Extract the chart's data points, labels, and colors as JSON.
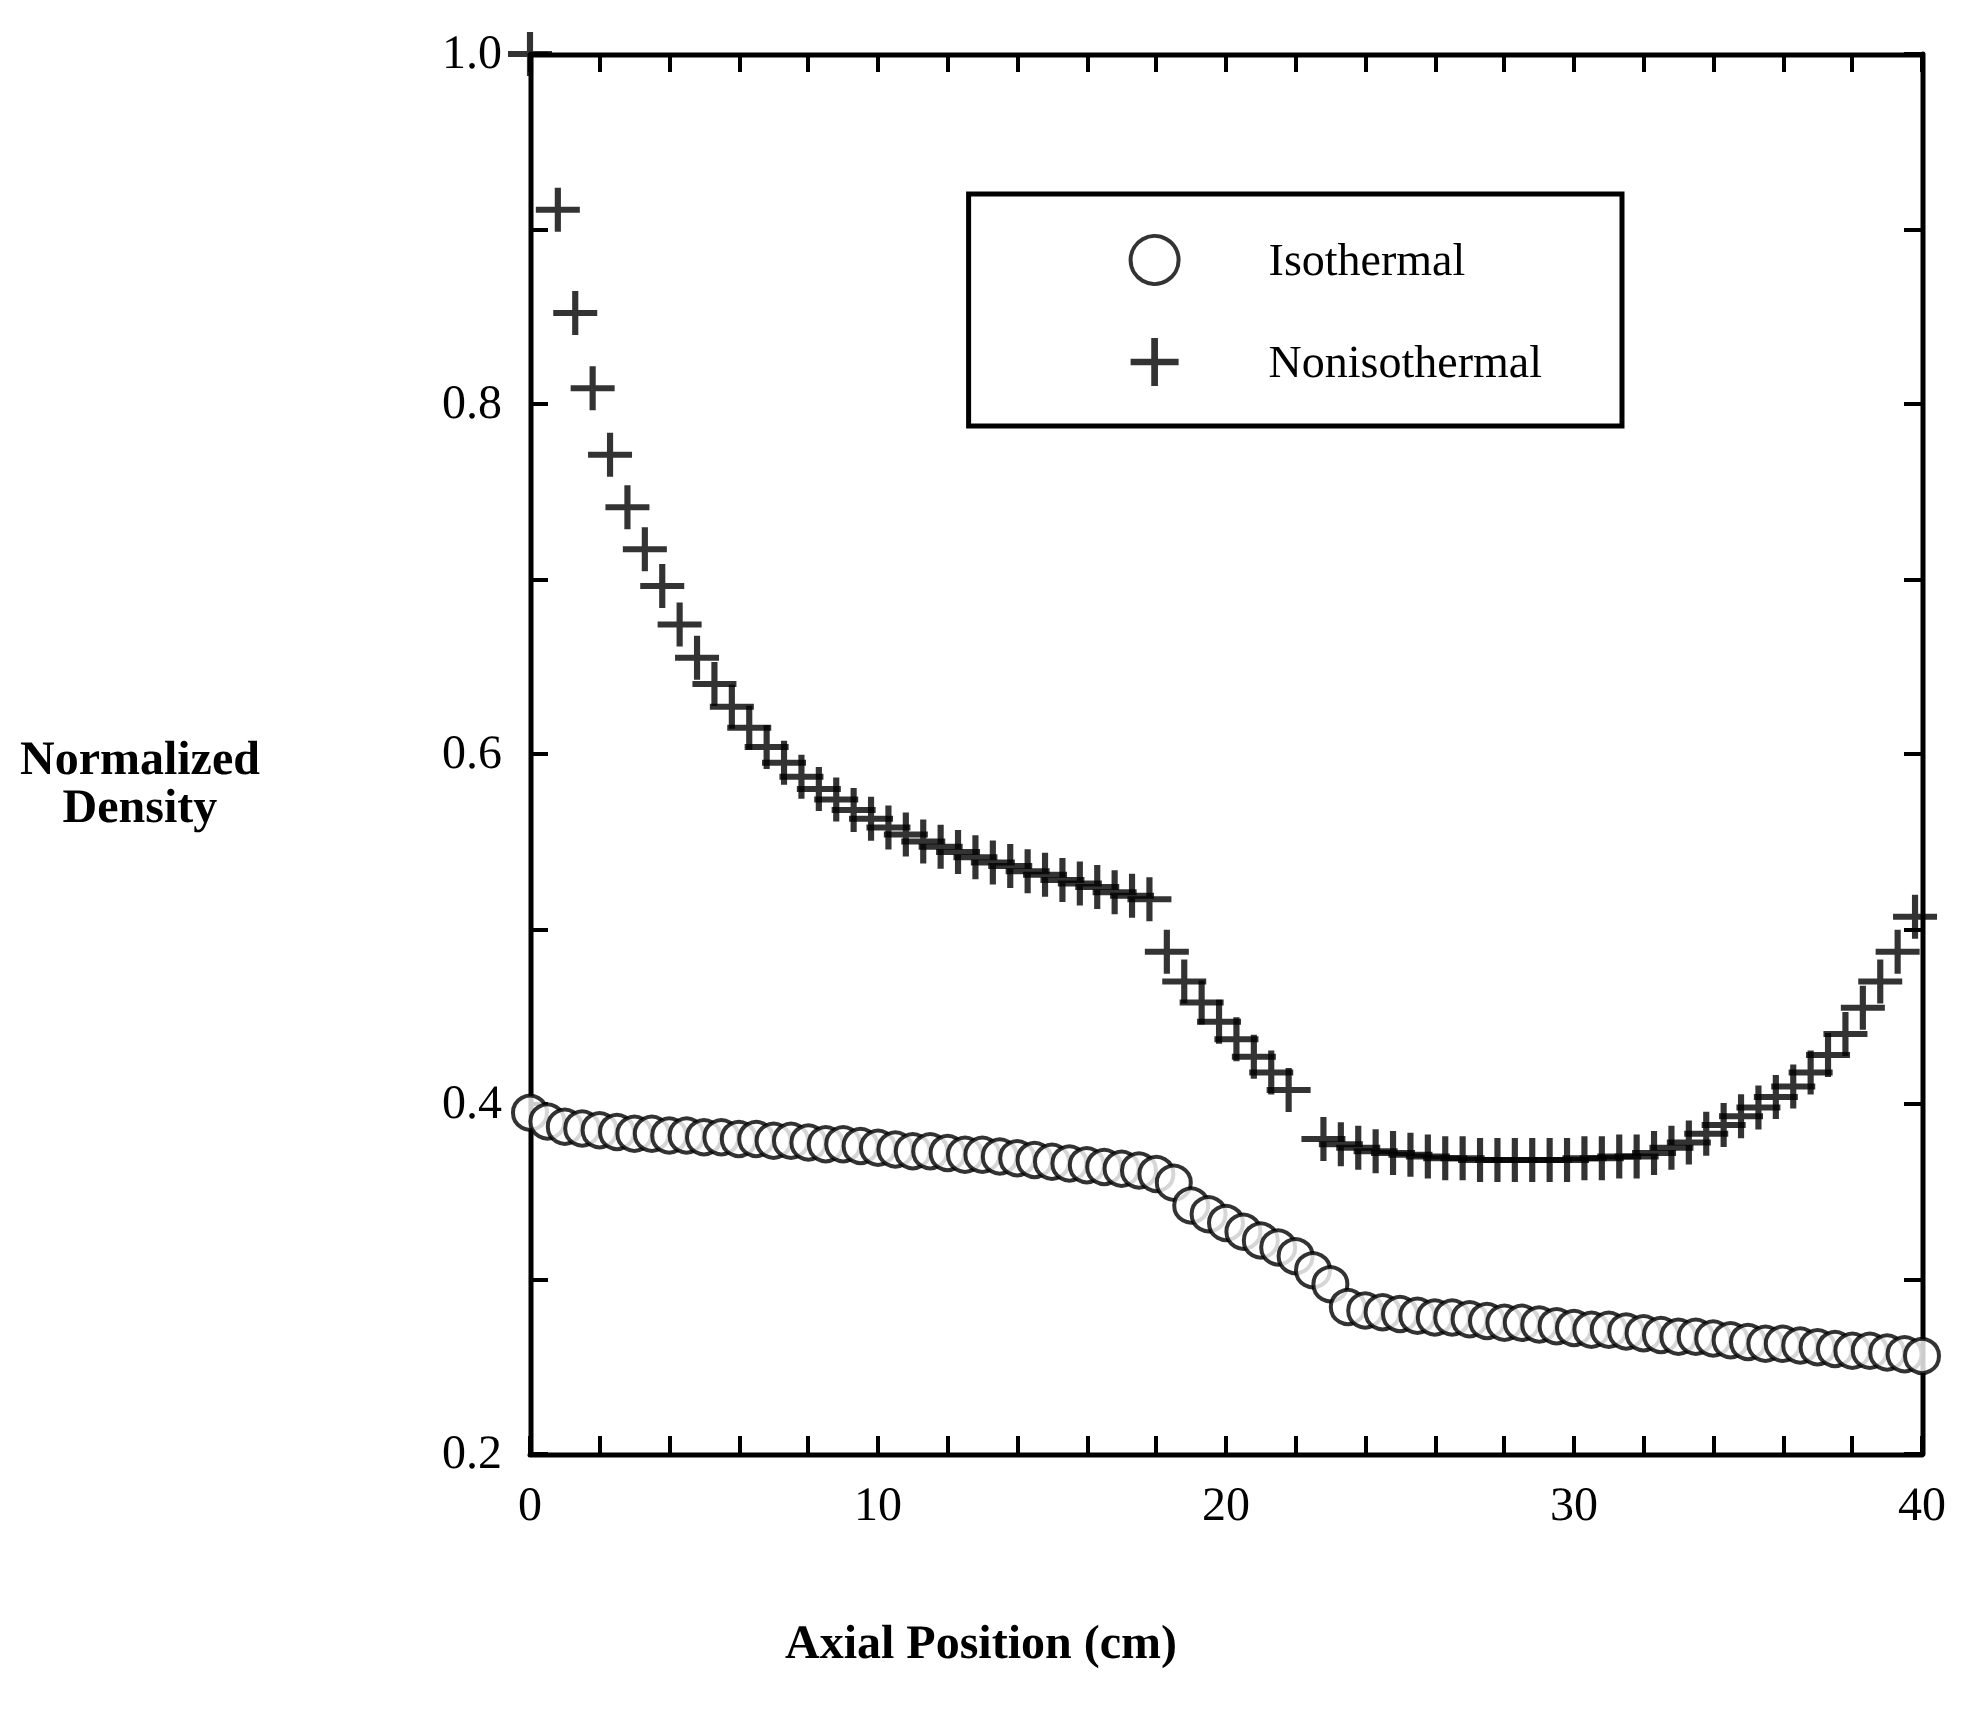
{
  "chart_data": {
    "type": "scatter",
    "xlabel": "Axial Position (cm)",
    "ylabel": "Normalized\nDensity",
    "xlim": [
      0,
      40
    ],
    "ylim": [
      0.2,
      1.0
    ],
    "xticks": [
      0,
      {
        "value": 2,
        "label": null
      },
      {
        "value": 4,
        "label": null
      },
      {
        "value": 6,
        "label": null
      },
      {
        "value": 8,
        "label": null
      },
      10,
      {
        "value": 12,
        "label": null
      },
      {
        "value": 14,
        "label": null
      },
      {
        "value": 16,
        "label": null
      },
      {
        "value": 18,
        "label": null
      },
      20,
      {
        "value": 22,
        "label": null
      },
      {
        "value": 24,
        "label": null
      },
      {
        "value": 26,
        "label": null
      },
      {
        "value": 28,
        "label": null
      },
      30,
      {
        "value": 32,
        "label": null
      },
      {
        "value": 34,
        "label": null
      },
      {
        "value": 36,
        "label": null
      },
      {
        "value": 38,
        "label": null
      },
      40
    ],
    "yticks": [
      {
        "value": 0.2,
        "label": "0.2"
      },
      {
        "value": 0.3,
        "label": null
      },
      {
        "value": 0.4,
        "label": "0.4"
      },
      {
        "value": 0.5,
        "label": null
      },
      {
        "value": 0.6,
        "label": "0.6"
      },
      {
        "value": 0.7,
        "label": null
      },
      {
        "value": 0.8,
        "label": "0.8"
      },
      {
        "value": 0.9,
        "label": null
      },
      {
        "value": 1.0,
        "label": "1.0"
      }
    ],
    "grid": false,
    "legend": "top right",
    "series": [
      {
        "name": "Isothermal",
        "color": "#000000",
        "marker": "circle",
        "x": [
          0,
          0.5,
          1,
          1.5,
          2,
          2.5,
          3,
          3.5,
          4,
          4.5,
          5,
          5.5,
          6,
          6.5,
          7,
          7.5,
          8,
          8.5,
          9,
          9.5,
          10,
          10.5,
          11,
          11.5,
          12,
          12.5,
          13,
          13.5,
          14,
          14.5,
          15,
          15.5,
          16,
          16.5,
          17,
          17.5,
          18,
          18.5,
          19,
          19.5,
          20,
          20.5,
          21,
          21.5,
          22,
          22.5,
          23,
          23.5,
          24,
          24.5,
          25,
          25.5,
          26,
          26.5,
          27,
          27.5,
          28,
          28.5,
          29,
          29.5,
          30,
          30.5,
          31,
          31.5,
          32,
          32.5,
          33,
          33.5,
          34,
          34.5,
          35,
          35.5,
          36,
          36.5,
          37,
          37.5,
          38,
          38.5,
          39,
          39.5,
          40
        ],
        "values": [
          0.395,
          0.39,
          0.387,
          0.386,
          0.385,
          0.384,
          0.383,
          0.383,
          0.382,
          0.382,
          0.381,
          0.381,
          0.38,
          0.38,
          0.379,
          0.379,
          0.378,
          0.377,
          0.377,
          0.376,
          0.375,
          0.374,
          0.373,
          0.373,
          0.372,
          0.371,
          0.371,
          0.37,
          0.369,
          0.368,
          0.367,
          0.366,
          0.365,
          0.364,
          0.363,
          0.362,
          0.36,
          0.355,
          0.342,
          0.337,
          0.332,
          0.327,
          0.322,
          0.318,
          0.313,
          0.305,
          0.297,
          0.284,
          0.282,
          0.281,
          0.28,
          0.279,
          0.278,
          0.278,
          0.277,
          0.276,
          0.275,
          0.275,
          0.274,
          0.273,
          0.272,
          0.271,
          0.271,
          0.27,
          0.269,
          0.268,
          0.267,
          0.267,
          0.266,
          0.265,
          0.264,
          0.263,
          0.263,
          0.262,
          0.261,
          0.26,
          0.259,
          0.259,
          0.258,
          0.257,
          0.256
        ]
      },
      {
        "name": "Nonisothermal",
        "color": "#000000",
        "marker": "cross",
        "x": [
          0,
          0.8,
          1.3,
          1.8,
          2.3,
          2.8,
          3.3,
          3.8,
          4.3,
          4.8,
          5.3,
          5.8,
          6.3,
          6.8,
          7.3,
          7.8,
          8.3,
          8.8,
          9.3,
          9.8,
          10.3,
          10.8,
          11.3,
          11.8,
          12.3,
          12.8,
          13.3,
          13.8,
          14.3,
          14.8,
          15.3,
          15.8,
          16.3,
          16.8,
          17.3,
          17.8,
          18.3,
          18.8,
          19.3,
          19.8,
          20.3,
          20.8,
          21.3,
          21.8,
          22.8,
          23.3,
          23.8,
          24.3,
          24.8,
          25.3,
          25.8,
          26.3,
          26.8,
          27.3,
          27.8,
          28.3,
          28.8,
          29.3,
          29.8,
          30.3,
          30.8,
          31.3,
          31.8,
          32.3,
          32.8,
          33.3,
          33.8,
          34.3,
          34.8,
          35.3,
          35.8,
          36.3,
          36.8,
          37.3,
          37.8,
          38.3,
          38.8,
          39.3,
          39.8
        ],
        "values": [
          1.0,
          0.911,
          0.852,
          0.809,
          0.771,
          0.741,
          0.717,
          0.696,
          0.674,
          0.655,
          0.64,
          0.627,
          0.615,
          0.604,
          0.595,
          0.587,
          0.58,
          0.574,
          0.568,
          0.563,
          0.558,
          0.554,
          0.55,
          0.547,
          0.544,
          0.541,
          0.538,
          0.536,
          0.533,
          0.531,
          0.528,
          0.526,
          0.524,
          0.521,
          0.519,
          0.517,
          0.487,
          0.47,
          0.458,
          0.447,
          0.437,
          0.427,
          0.418,
          0.408,
          0.38,
          0.377,
          0.375,
          0.373,
          0.372,
          0.371,
          0.37,
          0.369,
          0.369,
          0.368,
          0.368,
          0.368,
          0.368,
          0.368,
          0.368,
          0.369,
          0.369,
          0.37,
          0.37,
          0.372,
          0.375,
          0.378,
          0.383,
          0.388,
          0.393,
          0.398,
          0.404,
          0.41,
          0.418,
          0.428,
          0.44,
          0.455,
          0.47,
          0.487,
          0.507
        ]
      }
    ]
  }
}
